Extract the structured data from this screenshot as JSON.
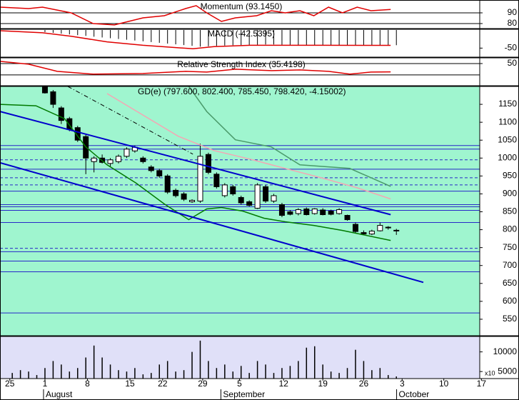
{
  "chart_data": [
    {
      "type": "line",
      "title": "Momentum (93.1450)",
      "background": "#ffffff",
      "grid": true,
      "xlim": [
        -5.5,
        53.2
      ],
      "ylim": [
        75.3,
        102
      ],
      "yticks": [
        90,
        80
      ],
      "series": [
        {
          "color": "#e00000",
          "x": [
            -5.5,
            -2,
            -0.3,
            3.2,
            5.9,
            8.5,
            12,
            14.6,
            17.2,
            18.5,
            19.8,
            21.6,
            23.3,
            25.9,
            27.7,
            29.4,
            31.2,
            32.9,
            34.7,
            36.4,
            38.2,
            39.9,
            42.3
          ],
          "values": [
            95.3,
            94,
            95.3,
            90,
            80,
            78.7,
            85.3,
            87.3,
            94,
            96.7,
            90,
            82,
            85.3,
            87.3,
            92,
            90,
            92,
            87.3,
            95.3,
            90,
            95.3,
            92,
            93.1
          ]
        }
      ]
    },
    {
      "type": "macd",
      "title": "MACD (-42.5395)",
      "background": "#ffffff",
      "grid": false,
      "xlim": [
        -5.5,
        53.2
      ],
      "ylim": [
        -75,
        2
      ],
      "yticks": [
        -50
      ],
      "histogram": {
        "color": "#000000",
        "x": [
          0,
          1,
          2,
          3,
          4,
          5,
          6,
          7,
          8,
          9,
          10,
          11,
          12,
          13,
          14,
          15,
          16,
          17,
          18,
          19,
          20,
          21,
          22,
          23,
          24,
          25,
          26,
          27,
          28,
          29,
          30,
          31,
          32,
          33,
          34,
          35,
          36,
          37,
          38,
          39,
          40,
          41,
          42,
          43
        ],
        "values": [
          -5.8,
          -7.9,
          -10,
          -12.1,
          -14.2,
          -16.3,
          -18.5,
          -20.6,
          -22.7,
          -24.8,
          -26.9,
          -29,
          -31.2,
          -33.3,
          -35.4,
          -37.5,
          -39.6,
          -41.7,
          -43.8,
          -46,
          -45,
          -44,
          -43,
          -42,
          -42,
          -41,
          -41,
          -40,
          -40,
          -41,
          -41,
          -42,
          -42,
          -42,
          -43,
          -43,
          -43,
          -42,
          -42,
          -43,
          -43,
          -43,
          -42,
          -42
        ]
      },
      "series": [
        {
          "color": "#e00000",
          "x": [
            -5.5,
            -0.3,
            3.2,
            7.6,
            12,
            18.1,
            20.7,
            25.1,
            33.8,
            42.3
          ],
          "values": [
            -1.9,
            -7.7,
            -17.3,
            -32.7,
            -42.3,
            -51.9,
            -46,
            -42.3,
            -42.3,
            -42.5
          ]
        }
      ]
    },
    {
      "type": "line",
      "title": "Relative Strength Index (35.4198)",
      "background": "#ffffff",
      "grid": true,
      "xlim": [
        -5.5,
        53.2
      ],
      "ylim": [
        11,
        60
      ],
      "yticks": [
        50
      ],
      "levels": [
        30
      ],
      "level_color": "#000000",
      "series": [
        {
          "color": "#e00000",
          "x": [
            -5.5,
            -2,
            1.5,
            5.9,
            12,
            17.2,
            19.8,
            23.3,
            27.7,
            31.2,
            34.7,
            37.3,
            39.9,
            42.3
          ],
          "values": [
            53.8,
            48.8,
            36.3,
            31.3,
            32.5,
            36.3,
            35,
            40,
            37.5,
            38.8,
            36.3,
            31.3,
            35,
            35.4
          ]
        }
      ]
    },
    {
      "type": "candlestick",
      "title": "GD(e) (797.600, 802.400, 785.450, 798.420, -4.15002)",
      "background": "#9ff5cf",
      "grid": false,
      "xlim": [
        -5.5,
        53.2
      ],
      "ylim": [
        504,
        1200
      ],
      "yticks": [
        1150,
        1100,
        1050,
        1000,
        950,
        900,
        850,
        800,
        750,
        700,
        650,
        600,
        550
      ],
      "up_color": "#ffffff",
      "down_color": "#000000",
      "x": [
        0,
        1,
        2,
        3,
        4,
        5,
        6,
        7,
        8,
        9,
        10,
        11,
        12,
        13,
        14,
        15,
        16,
        17,
        18,
        19,
        20,
        21,
        22,
        23,
        24,
        25,
        26,
        27,
        28,
        29,
        30,
        31,
        32,
        33,
        34,
        35,
        36,
        37,
        38,
        39,
        40,
        41,
        42,
        43
      ],
      "open": [
        1198,
        1185,
        1140,
        1110,
        1085,
        1060,
        990,
        1000,
        985,
        990,
        1005,
        1020,
        1000,
        975,
        965,
        950,
        910,
        900,
        878,
        880,
        1010,
        955,
        895,
        920,
        890,
        878,
        860,
        920,
        880,
        870,
        850,
        845,
        858,
        845,
        855,
        852,
        845,
        840,
        815,
        792,
        788,
        797,
        806,
        797.6
      ],
      "high": [
        1200,
        1190,
        1145,
        1115,
        1090,
        1065,
        1005,
        1010,
        1000,
        1010,
        1030,
        1035,
        1005,
        980,
        970,
        955,
        915,
        905,
        885,
        1040,
        1015,
        960,
        930,
        925,
        895,
        882,
        930,
        925,
        900,
        875,
        855,
        860,
        862,
        860,
        860,
        856,
        860,
        842,
        820,
        798,
        800,
        820,
        810,
        802.4
      ],
      "low": [
        1180,
        1140,
        1095,
        1075,
        1045,
        955,
        960,
        985,
        975,
        985,
        1000,
        1015,
        985,
        960,
        945,
        900,
        890,
        880,
        875,
        875,
        955,
        915,
        890,
        895,
        870,
        865,
        858,
        875,
        875,
        835,
        840,
        840,
        840,
        842,
        840,
        840,
        842,
        825,
        790,
        785,
        785,
        795,
        800,
        785.45
      ],
      "close": [
        1182,
        1150,
        1105,
        1080,
        1050,
        1000,
        1000,
        988,
        995,
        1005,
        1025,
        1030,
        990,
        965,
        950,
        905,
        895,
        885,
        882,
        1005,
        960,
        920,
        925,
        900,
        875,
        868,
        925,
        880,
        895,
        840,
        843,
        856,
        842,
        858,
        842,
        843,
        856,
        828,
        795,
        788,
        796,
        812,
        807,
        798.42
      ],
      "levels": [
        1035,
        1025,
        969,
        907.5,
        870,
        864,
        854,
        820,
        738.5,
        712.5,
        682.5,
        567.5
      ],
      "dashed_levels": [
        995,
        945,
        925,
        748
      ],
      "level_color": "#2828c8",
      "series": [
        {
          "color": "#007a00",
          "x": [
            -5.5,
            -1.1,
            2.4,
            5,
            7.6,
            11.1,
            14.6,
            17.6,
            19.8,
            21.6,
            24.2,
            26.8,
            29.4,
            32.9,
            36.4,
            42.3
          ],
          "values": [
            1150,
            1146,
            1110,
            1031,
            981,
            931,
            872,
            828,
            858,
            862,
            852,
            832,
            822,
            812,
            798,
            770
          ]
        },
        {
          "color": "#4a9a6a",
          "x": [
            17.6,
            19.8,
            23.3,
            27.7,
            31.2,
            37.3,
            42.3
          ],
          "values": [
            1200,
            1130,
            1051,
            1031,
            981,
            971,
            921
          ]
        },
        {
          "color": "#f4a6b4",
          "x": [
            7.6,
            12,
            16.3,
            20.7,
            25.1,
            29.4,
            33.8,
            38.2,
            42.3
          ],
          "values": [
            1180,
            1120,
            1061,
            1021,
            997,
            971,
            945,
            917,
            886
          ]
        },
        {
          "color": "#000000",
          "dash": true,
          "x": [
            2.8,
            18.1
          ],
          "values": [
            1200,
            1011
          ]
        }
      ],
      "trendlines": [
        {
          "color": "#0000cc",
          "x": [
            -5.5,
            42.3
          ],
          "values": [
            1130,
            842
          ]
        },
        {
          "color": "#0000cc",
          "x": [
            -5.5,
            46.3
          ],
          "values": [
            987,
            653
          ]
        }
      ]
    },
    {
      "type": "bar",
      "background": "#e0e0f8",
      "grid": false,
      "color": "#000000",
      "xlim": [
        -5.5,
        53.2
      ],
      "ylim": [
        3214,
        13930
      ],
      "yticks": [
        {
          "value": 10000,
          "label": "10000"
        },
        {
          "value": 5000,
          "label": "5000"
        }
      ],
      "unit_label": "x10",
      "x": [
        -4,
        -3,
        -2,
        -1,
        0,
        1,
        2,
        3,
        4,
        5,
        6,
        7,
        8,
        9,
        10,
        11,
        12,
        13,
        14,
        15,
        16,
        17,
        18,
        19,
        20,
        21,
        22,
        23,
        24,
        25,
        26,
        27,
        28,
        29,
        30,
        31,
        32,
        33,
        34,
        35,
        36,
        37,
        38,
        39,
        40,
        41,
        42,
        43
      ],
      "values": [
        4643,
        5357,
        5000,
        4107,
        5893,
        7679,
        6786,
        5000,
        5893,
        8572,
        11608,
        8572,
        6786,
        5357,
        5000,
        5893,
        4286,
        4643,
        6786,
        7679,
        5000,
        5357,
        10000,
        12858,
        7679,
        5893,
        6786,
        5000,
        6429,
        4643,
        7679,
        6786,
        4643,
        5893,
        6429,
        7679,
        11072,
        11430,
        6786,
        5000,
        4643,
        5893,
        10536,
        7679,
        5357,
        5893,
        4107,
        3750
      ],
      "xaxis": {
        "xlim": [
          -5.5,
          58
        ],
        "xticks": [
          {
            "value": -4.3,
            "label": "25"
          },
          {
            "value": 0,
            "label": "1"
          },
          {
            "value": 5.2,
            "label": "8"
          },
          {
            "value": 10.4,
            "label": "15"
          },
          {
            "value": 14.4,
            "label": "22"
          },
          {
            "value": 19.3,
            "label": "29"
          },
          {
            "value": 23.8,
            "label": "5"
          },
          {
            "value": 29.2,
            "label": "12"
          },
          {
            "value": 34,
            "label": "19"
          },
          {
            "value": 39,
            "label": "26"
          },
          {
            "value": 43.7,
            "label": "3"
          },
          {
            "value": 48.8,
            "label": "10"
          },
          {
            "value": 53.4,
            "label": "17"
          }
        ],
        "months": [
          {
            "value": 0,
            "label": "August"
          },
          {
            "value": 21.7,
            "label": "September"
          },
          {
            "value": 43.2,
            "label": "October"
          }
        ]
      }
    }
  ]
}
